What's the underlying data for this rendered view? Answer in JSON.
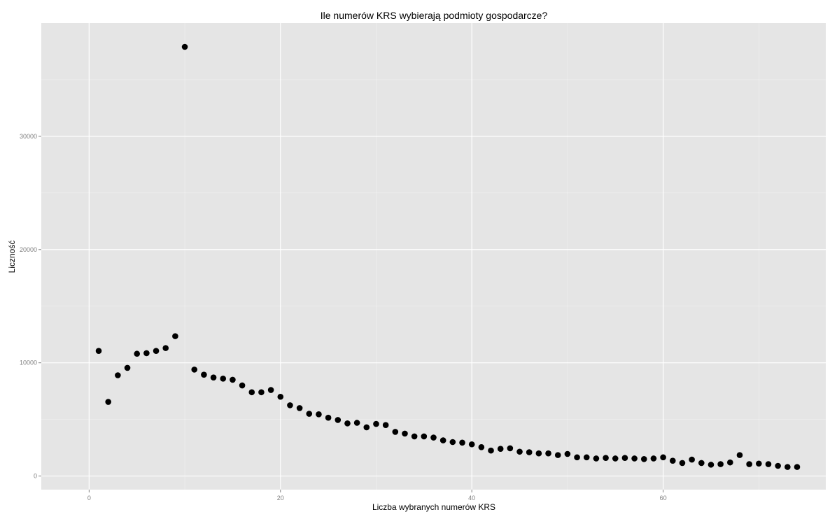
{
  "chart_data": {
    "type": "scatter",
    "title": "Ile numerów KRS wybierają podmioty gospodarcze?",
    "xlabel": "Liczba wybranych numerów KRS",
    "ylabel": "Liczność",
    "xlim": [
      -5,
      77
    ],
    "ylim": [
      -1200,
      40000
    ],
    "x_ticks": [
      0,
      20,
      40,
      60
    ],
    "y_ticks": [
      0,
      10000,
      20000,
      30000
    ],
    "x_tick_labels": [
      "0",
      "20",
      "40",
      "60"
    ],
    "y_tick_labels": [
      "0",
      "10000",
      "20000",
      "30000"
    ],
    "grid": true,
    "panel_background": "#e5e5e5",
    "grid_color": "#ffffff",
    "point_color": "#000000",
    "points": [
      [
        1,
        11050
      ],
      [
        2,
        6550
      ],
      [
        3,
        8900
      ],
      [
        4,
        9550
      ],
      [
        5,
        10800
      ],
      [
        6,
        10850
      ],
      [
        7,
        11050
      ],
      [
        8,
        11300
      ],
      [
        9,
        12350
      ],
      [
        10,
        37900
      ],
      [
        11,
        9400
      ],
      [
        12,
        8950
      ],
      [
        13,
        8700
      ],
      [
        14,
        8600
      ],
      [
        15,
        8500
      ],
      [
        16,
        8000
      ],
      [
        17,
        7400
      ],
      [
        18,
        7400
      ],
      [
        19,
        7600
      ],
      [
        20,
        7000
      ],
      [
        21,
        6250
      ],
      [
        22,
        6000
      ],
      [
        23,
        5500
      ],
      [
        24,
        5450
      ],
      [
        25,
        5150
      ],
      [
        26,
        4950
      ],
      [
        27,
        4650
      ],
      [
        28,
        4700
      ],
      [
        29,
        4300
      ],
      [
        30,
        4600
      ],
      [
        31,
        4500
      ],
      [
        32,
        3900
      ],
      [
        33,
        3750
      ],
      [
        34,
        3500
      ],
      [
        35,
        3500
      ],
      [
        36,
        3400
      ],
      [
        37,
        3150
      ],
      [
        38,
        3000
      ],
      [
        39,
        2950
      ],
      [
        40,
        2800
      ],
      [
        41,
        2550
      ],
      [
        42,
        2250
      ],
      [
        43,
        2400
      ],
      [
        44,
        2450
      ],
      [
        45,
        2150
      ],
      [
        46,
        2100
      ],
      [
        47,
        2000
      ],
      [
        48,
        2000
      ],
      [
        49,
        1850
      ],
      [
        50,
        1950
      ],
      [
        51,
        1650
      ],
      [
        52,
        1650
      ],
      [
        53,
        1550
      ],
      [
        54,
        1600
      ],
      [
        55,
        1550
      ],
      [
        56,
        1600
      ],
      [
        57,
        1550
      ],
      [
        58,
        1500
      ],
      [
        59,
        1550
      ],
      [
        60,
        1650
      ],
      [
        61,
        1350
      ],
      [
        62,
        1150
      ],
      [
        63,
        1450
      ],
      [
        64,
        1150
      ],
      [
        65,
        1000
      ],
      [
        66,
        1050
      ],
      [
        67,
        1200
      ],
      [
        68,
        1850
      ],
      [
        69,
        1050
      ],
      [
        70,
        1100
      ],
      [
        71,
        1050
      ],
      [
        72,
        900
      ],
      [
        73,
        800
      ],
      [
        74,
        800
      ]
    ]
  }
}
